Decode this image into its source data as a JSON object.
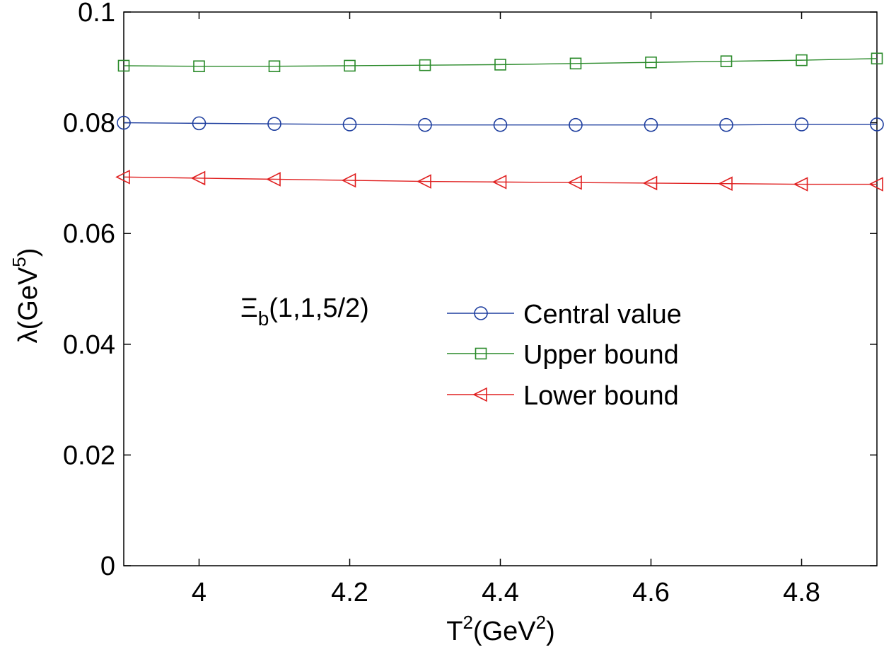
{
  "chart_data": {
    "type": "line",
    "title": "",
    "xlabel": {
      "base": "T",
      "sup": "2",
      "mid": "(GeV",
      "sup2": "2",
      "end": ")"
    },
    "ylabel": {
      "base": "λ(GeV",
      "sup": "5",
      "end": ")"
    },
    "xlim": [
      3.9,
      4.9
    ],
    "ylim": [
      0,
      0.1
    ],
    "xticks": [
      4,
      4.2,
      4.4,
      4.6,
      4.8
    ],
    "xtick_labels": [
      "4",
      "4.2",
      "4.4",
      "4.6",
      "4.8"
    ],
    "yticks": [
      0,
      0.02,
      0.04,
      0.06,
      0.08,
      0.1
    ],
    "ytick_labels": [
      "0",
      "0.02",
      "0.04",
      "0.06",
      "0.08",
      "0.1"
    ],
    "grid": false,
    "legend_position": "center-right",
    "annotation": {
      "base": "Ξ",
      "sub": "b",
      "rest": "(1,1,5/2)"
    },
    "x": [
      3.9,
      4.0,
      4.1,
      4.2,
      4.3,
      4.4,
      4.5,
      4.6,
      4.7,
      4.8,
      4.9
    ],
    "series": [
      {
        "name": "Central value",
        "marker": "circle",
        "color": "#1f3f9f",
        "values": [
          0.08,
          0.0799,
          0.0798,
          0.0797,
          0.0796,
          0.0796,
          0.0796,
          0.0796,
          0.0796,
          0.0797,
          0.0797
        ]
      },
      {
        "name": "Upper bound",
        "marker": "square",
        "color": "#2a8a2a",
        "values": [
          0.0903,
          0.0902,
          0.0902,
          0.0903,
          0.0904,
          0.0905,
          0.0907,
          0.0909,
          0.0911,
          0.0913,
          0.0916
        ]
      },
      {
        "name": "Lower bound",
        "marker": "triangle-left",
        "color": "#e02020",
        "values": [
          0.0702,
          0.07,
          0.0698,
          0.0696,
          0.0694,
          0.0693,
          0.0692,
          0.0691,
          0.069,
          0.0689,
          0.0689
        ]
      }
    ]
  }
}
